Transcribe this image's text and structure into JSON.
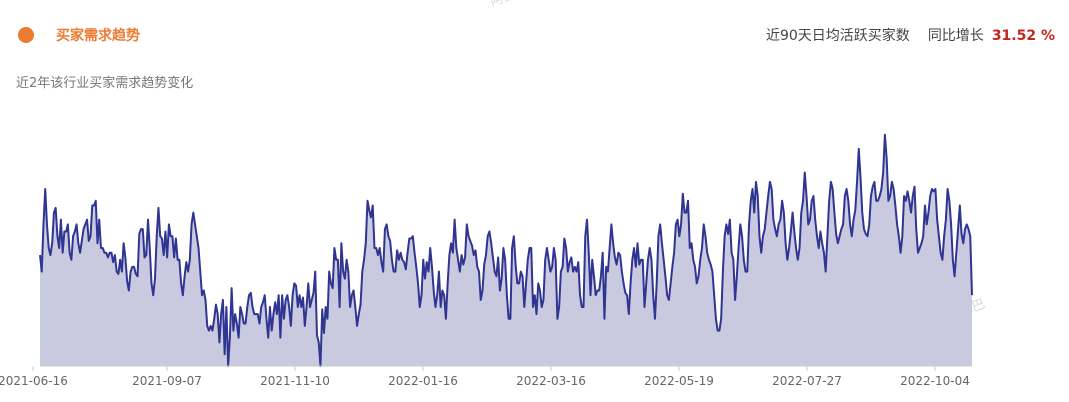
{
  "header": {
    "title": "买家需求趋势",
    "accent_color": "#ec7b33",
    "metric_label": "近90天日均活跃买家数",
    "growth_label": "同比增长",
    "growth_value": "31.52 %",
    "growth_color": "#c0281f"
  },
  "subtitle": "近2年该行业买家需求趋势变化",
  "watermark": "阿里巴巴",
  "chart_data": {
    "type": "area",
    "title": "",
    "xlabel": "",
    "ylabel": "",
    "x_tick_labels": [
      "2021-06-16",
      "2021-09-07",
      "2021-11-10",
      "2022-01-16",
      "2022-03-16",
      "2022-05-19",
      "2022-07-27",
      "2022-10-04"
    ],
    "ylim": [
      0,
      100
    ],
    "y_axis_labels_visible": false,
    "grid": false,
    "line_color": "#2f3590",
    "fill_color": "#c9cae0",
    "values": [
      47,
      40,
      60,
      75,
      60,
      50,
      47,
      52,
      65,
      67,
      55,
      50,
      62,
      48,
      57,
      57,
      60,
      48,
      45,
      55,
      57,
      60,
      52,
      48,
      53,
      58,
      60,
      62,
      53,
      55,
      68,
      68,
      70,
      52,
      62,
      50,
      50,
      48,
      48,
      46,
      48,
      48,
      44,
      47,
      40,
      39,
      45,
      40,
      52,
      46,
      36,
      32,
      40,
      42,
      42,
      39,
      38,
      56,
      58,
      58,
      46,
      47,
      62,
      50,
      35,
      30,
      37,
      55,
      67,
      55,
      54,
      47,
      57,
      46,
      60,
      55,
      55,
      46,
      54,
      45,
      45,
      35,
      30,
      38,
      44,
      40,
      45,
      60,
      65,
      60,
      55,
      50,
      40,
      30,
      32,
      28,
      17,
      15,
      17,
      15,
      20,
      26,
      22,
      10,
      22,
      28,
      5,
      25,
      0,
      12,
      33,
      15,
      22,
      18,
      12,
      25,
      22,
      18,
      18,
      25,
      30,
      31,
      25,
      22,
      22,
      22,
      18,
      25,
      27,
      30,
      20,
      12,
      25,
      15,
      22,
      27,
      22,
      30,
      12,
      30,
      20,
      28,
      30,
      25,
      17,
      30,
      35,
      34,
      25,
      30,
      25,
      29,
      17,
      25,
      35,
      25,
      28,
      31,
      40,
      13,
      10,
      0,
      24,
      14,
      25,
      20,
      40,
      35,
      33,
      50,
      45,
      45,
      25,
      52,
      40,
      37,
      45,
      40,
      25,
      30,
      32,
      25,
      17,
      22,
      26,
      40,
      45,
      52,
      70,
      66,
      63,
      68,
      50,
      50,
      47,
      50,
      44,
      40,
      58,
      60,
      55,
      53,
      45,
      40,
      40,
      49,
      45,
      48,
      45,
      44,
      41,
      48,
      54,
      54,
      55,
      48,
      42,
      35,
      25,
      30,
      45,
      37,
      44,
      40,
      50,
      42,
      32,
      25,
      30,
      40,
      25,
      32,
      30,
      20,
      35,
      47,
      52,
      48,
      62,
      50,
      45,
      40,
      47,
      43,
      46,
      60,
      55,
      53,
      51,
      47,
      49,
      42,
      40,
      28,
      32,
      43,
      47,
      55,
      57,
      52,
      46,
      40,
      38,
      46,
      32,
      37,
      50,
      45,
      30,
      20,
      20,
      50,
      55,
      43,
      35,
      35,
      40,
      38,
      25,
      35,
      45,
      50,
      50,
      25,
      30,
      22,
      35,
      32,
      25,
      28,
      45,
      50,
      45,
      40,
      42,
      50,
      45,
      20,
      25,
      40,
      42,
      54,
      50,
      40,
      44,
      46,
      40,
      42,
      40,
      44,
      30,
      25,
      25,
      55,
      62,
      48,
      30,
      45,
      38,
      30,
      32,
      32,
      38,
      48,
      20,
      42,
      40,
      50,
      60,
      52,
      46,
      43,
      48,
      47,
      40,
      35,
      31,
      30,
      22,
      35,
      45,
      50,
      42,
      52,
      43,
      45,
      45,
      25,
      35,
      45,
      50,
      45,
      30,
      20,
      35,
      55,
      60,
      52,
      45,
      38,
      30,
      28,
      35,
      42,
      48,
      60,
      62,
      55,
      60,
      73,
      65,
      65,
      70,
      50,
      52,
      45,
      42,
      35,
      38,
      45,
      50,
      60,
      55,
      48,
      45,
      43,
      40,
      30,
      20,
      15,
      15,
      20,
      40,
      55,
      60,
      56,
      62,
      48,
      45,
      28,
      38,
      50,
      60,
      55,
      45,
      40,
      40,
      60,
      70,
      75,
      65,
      78,
      72,
      55,
      48,
      55,
      58,
      65,
      72,
      78,
      75,
      62,
      58,
      55,
      60,
      62,
      70,
      65,
      52,
      45,
      50,
      57,
      65,
      57,
      50,
      45,
      50,
      65,
      70,
      82,
      72,
      60,
      62,
      70,
      72,
      62,
      55,
      50,
      57,
      52,
      48,
      40,
      55,
      70,
      78,
      75,
      65,
      56,
      52,
      55,
      58,
      60,
      72,
      75,
      70,
      60,
      55,
      62,
      66,
      78,
      92,
      80,
      65,
      58,
      56,
      55,
      60,
      72,
      76,
      78,
      70,
      70,
      72,
      75,
      82,
      98,
      88,
      70,
      72,
      78,
      75,
      68,
      60,
      55,
      48,
      55,
      72,
      70,
      74,
      70,
      65,
      72,
      76,
      58,
      48,
      50,
      52,
      55,
      68,
      60,
      65,
      72,
      75,
      74,
      75,
      62,
      55,
      48,
      45,
      55,
      62,
      75,
      70,
      60,
      45,
      38,
      48,
      58,
      68,
      56,
      52,
      58,
      60,
      58,
      55,
      30
    ]
  }
}
